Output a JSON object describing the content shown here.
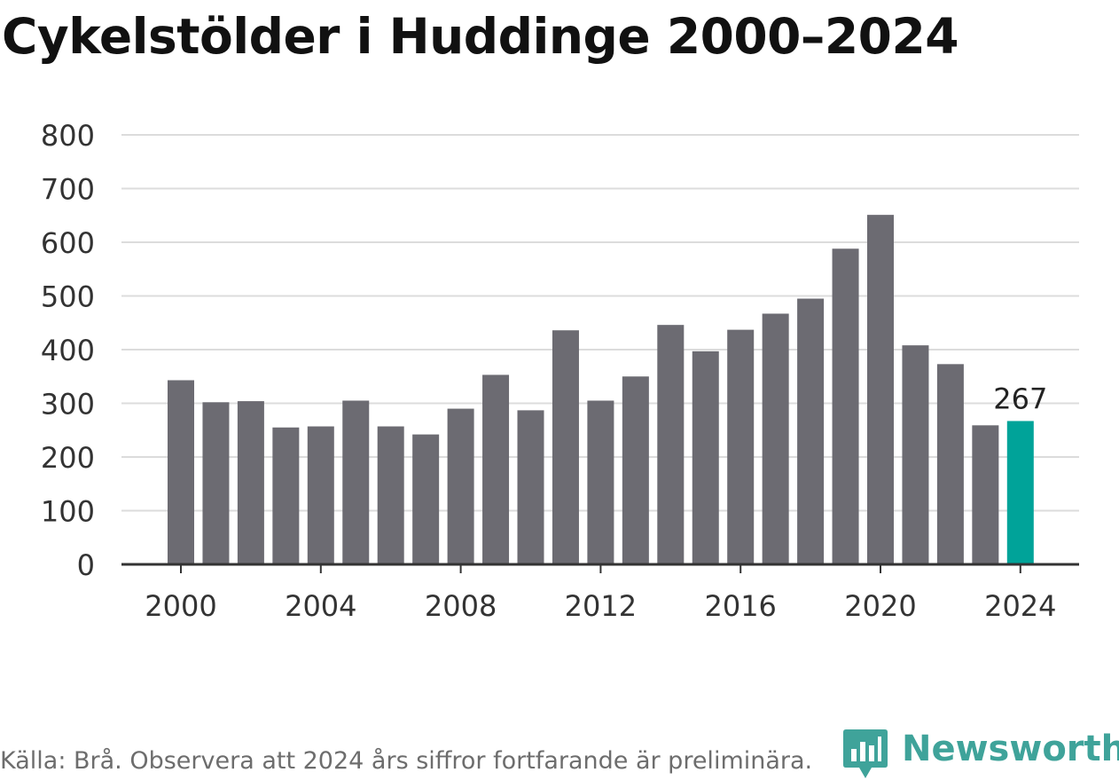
{
  "title": "Cykelstölder i Huddinge 2000–2024",
  "chart_data": {
    "type": "bar",
    "title": "Cykelstölder i Huddinge 2000–2024",
    "xlabel": "",
    "ylabel": "",
    "categories": [
      "2000",
      "2001",
      "2002",
      "2003",
      "2004",
      "2005",
      "2006",
      "2007",
      "2008",
      "2009",
      "2010",
      "2011",
      "2012",
      "2013",
      "2014",
      "2015",
      "2016",
      "2017",
      "2018",
      "2019",
      "2020",
      "2021",
      "2022",
      "2023",
      "2024"
    ],
    "values": [
      343,
      302,
      304,
      255,
      257,
      305,
      257,
      242,
      290,
      353,
      287,
      436,
      305,
      350,
      446,
      397,
      437,
      467,
      495,
      588,
      651,
      408,
      373,
      259,
      267
    ],
    "ylim": [
      0,
      800
    ],
    "yticks": [
      0,
      100,
      200,
      300,
      400,
      500,
      600,
      700,
      800
    ],
    "xticks": [
      "2000",
      "2004",
      "2008",
      "2012",
      "2016",
      "2020",
      "2024"
    ],
    "grid": true,
    "legend": "none",
    "highlight": {
      "category": "2024",
      "label": "267"
    }
  },
  "colors": {
    "bar": "#6c6b72",
    "highlight": "#00a399",
    "grid": "#dcdcdc",
    "axis": "#333333",
    "brand": "#3fa39a"
  },
  "footer": {
    "source": "Källa: Brå. Observera att 2024 års siffror fortfarande är preliminära."
  },
  "logo": {
    "name": "Newsworthy",
    "icon": "bar-chart-pin-icon"
  }
}
